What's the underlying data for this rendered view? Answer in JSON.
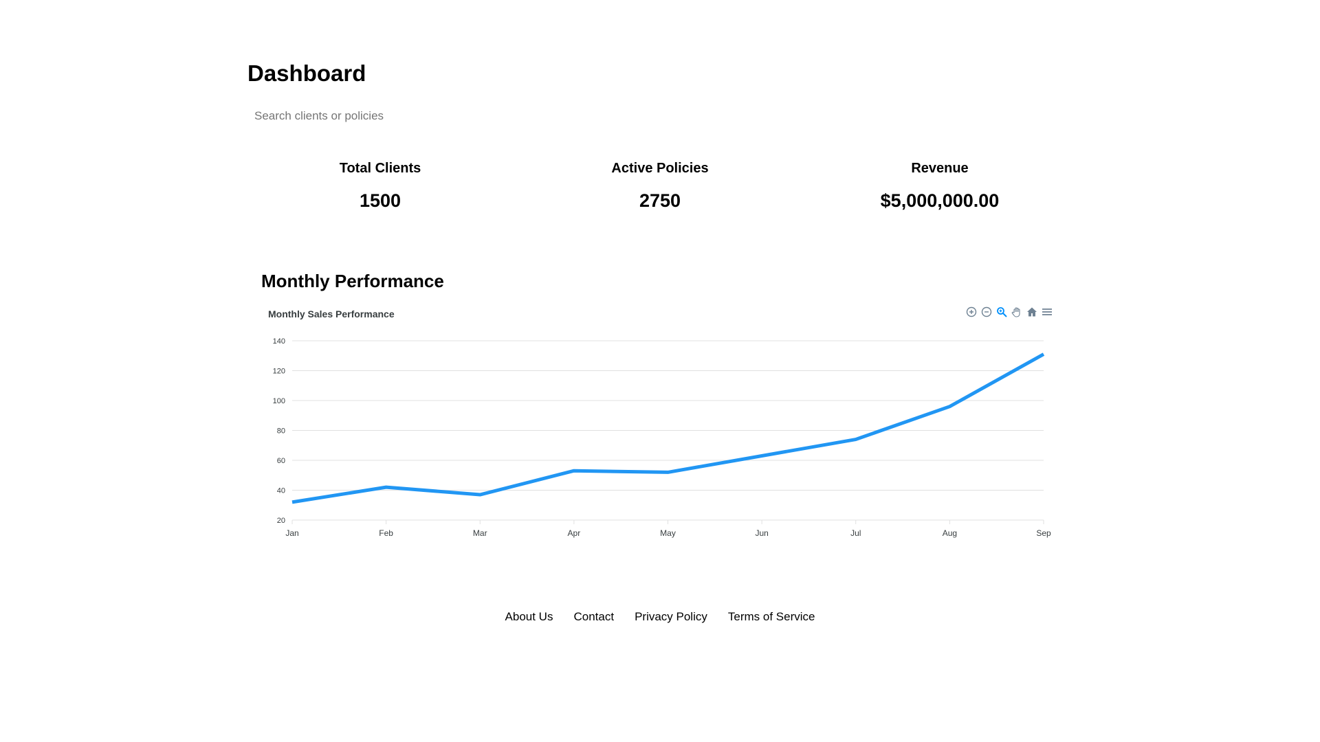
{
  "header": {
    "title": "Dashboard"
  },
  "search": {
    "placeholder": "Search clients or policies",
    "value": ""
  },
  "stats": [
    {
      "label": "Total Clients",
      "value": "1500"
    },
    {
      "label": "Active Policies",
      "value": "2750"
    },
    {
      "label": "Revenue",
      "value": "$5,000,000.00"
    }
  ],
  "section": {
    "title": "Monthly Performance"
  },
  "toolbar": {
    "icons": [
      "zoom-in-icon",
      "zoom-out-icon",
      "selection-zoom-icon",
      "pan-icon",
      "reset-home-icon",
      "menu-icon"
    ],
    "active_color": "#008ffb",
    "icon_color": "#6e8192"
  },
  "chart_data": {
    "type": "line",
    "title": "Monthly Sales Performance",
    "categories": [
      "Jan",
      "Feb",
      "Mar",
      "Apr",
      "May",
      "Jun",
      "Jul",
      "Aug",
      "Sep"
    ],
    "series": [
      {
        "values": [
          32,
          42,
          37,
          53,
          52,
          63,
          74,
          96,
          131
        ],
        "color": "#2196f3"
      }
    ],
    "ylim": [
      20,
      140
    ],
    "yticks": [
      20,
      40,
      60,
      80,
      100,
      120,
      140
    ],
    "grid": true,
    "xlabel": "",
    "ylabel": ""
  },
  "footer": {
    "links": [
      "About Us",
      "Contact",
      "Privacy Policy",
      "Terms of Service"
    ]
  }
}
